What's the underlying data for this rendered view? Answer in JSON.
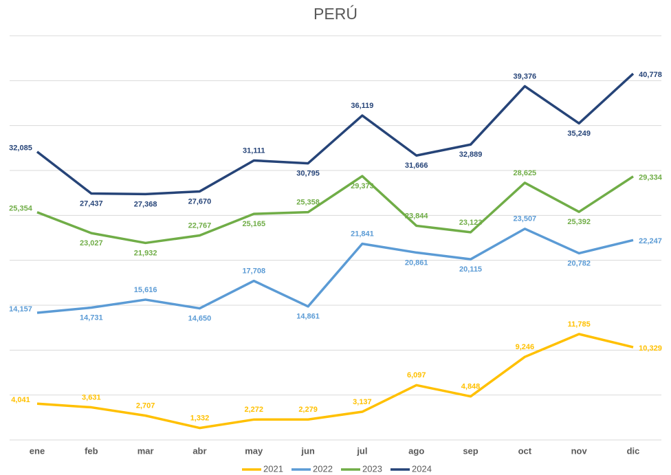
{
  "chart_data": {
    "type": "line",
    "title": "PERÚ",
    "categories": [
      "ene",
      "feb",
      "mar",
      "abr",
      "may",
      "jun",
      "jul",
      "ago",
      "sep",
      "oct",
      "nov",
      "dic"
    ],
    "series": [
      {
        "name": "2021",
        "color": "#ffc000",
        "values": [
          4041,
          3631,
          2707,
          1332,
          2272,
          2279,
          3137,
          6097,
          4848,
          9246,
          11785,
          10329
        ],
        "value_labels": [
          "4,041",
          "3,631",
          "2,707",
          "1,332",
          "2,272",
          "2,279",
          "3,137",
          "6,097",
          "4,848",
          "9,246",
          "11,785",
          "10,329"
        ]
      },
      {
        "name": "2022",
        "color": "#5b9bd5",
        "values": [
          14157,
          14731,
          15616,
          14650,
          17708,
          14861,
          21841,
          20861,
          20115,
          23507,
          20782,
          22247
        ],
        "value_labels": [
          "14,157",
          "14,731",
          "15,616",
          "14,650",
          "17,708",
          "14,861",
          "21,841",
          "20,861",
          "20,115",
          "23,507",
          "20,782",
          "22,247"
        ]
      },
      {
        "name": "2023",
        "color": "#70ad47",
        "values": [
          25354,
          23027,
          21932,
          22767,
          25165,
          25358,
          29373,
          23844,
          23123,
          28625,
          25392,
          29334
        ],
        "value_labels": [
          "25,354",
          "23,027",
          "21,932",
          "22,767",
          "25,165",
          "25,358",
          "29,373",
          "23,844",
          "23,123",
          "28,625",
          "25,392",
          "29,334"
        ]
      },
      {
        "name": "2024",
        "color": "#264478",
        "values": [
          32085,
          27437,
          27368,
          27670,
          31111,
          30795,
          36119,
          31666,
          32889,
          39376,
          35249,
          40778
        ],
        "value_labels": [
          "32,085",
          "27,437",
          "27,368",
          "27,670",
          "31,111",
          "30,795",
          "36,119",
          "31,666",
          "32,889",
          "39,376",
          "35,249",
          "40,778"
        ]
      }
    ],
    "ylim": [
      0,
      45000
    ],
    "yticks": [
      0,
      5000,
      10000,
      15000,
      20000,
      25000,
      30000,
      35000,
      40000,
      45000
    ],
    "grid": true,
    "legend": "bottom"
  }
}
